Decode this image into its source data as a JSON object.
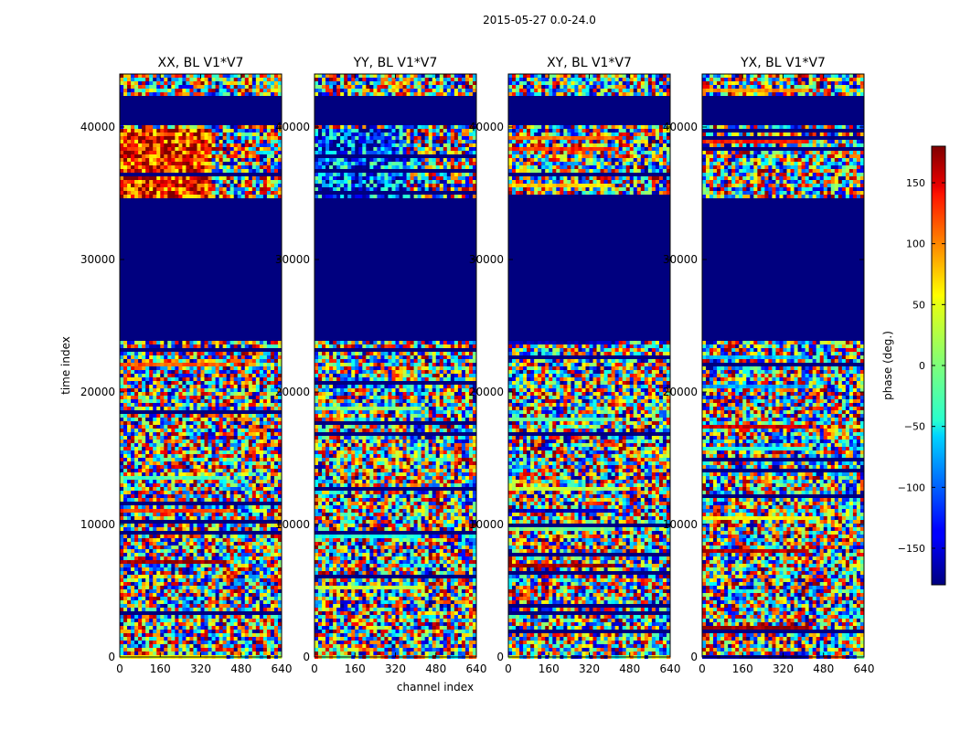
{
  "figure": {
    "suptitle": "2015-05-27 0.0-24.0",
    "ylabel": "time index",
    "xlabel": "channel index"
  },
  "chart_data": {
    "type": "heatmap",
    "description_note": "waterfall phase plots per polarization product",
    "x_range": [
      0,
      640
    ],
    "y_range": [
      0,
      44000
    ],
    "x_ticks": [
      0,
      160,
      320,
      480,
      640
    ],
    "y_ticks": [
      0,
      10000,
      20000,
      30000,
      40000
    ],
    "y_tick_labels": [
      "0",
      "10000",
      "20000",
      "30000",
      "40000"
    ],
    "panels": [
      {
        "title": "XX, BL V1*V7",
        "pol": "XX"
      },
      {
        "title": "YY, BL V1*V7",
        "pol": "YY"
      },
      {
        "title": "XY, BL V1*V7",
        "pol": "XY"
      },
      {
        "title": "YX, BL V1*V7",
        "pol": "YX"
      }
    ],
    "flagged_time_ranges": [
      [
        24000,
        34500
      ],
      [
        40200,
        42300
      ]
    ],
    "colorbar": {
      "label": "phase (deg.)",
      "range": [
        -180,
        180
      ],
      "ticks": [
        150,
        100,
        50,
        0,
        -50,
        -100,
        -150
      ],
      "tick_labels": [
        "150",
        "100",
        "50",
        "0",
        "−50",
        "−100",
        "−150"
      ],
      "colormap": "jet"
    }
  },
  "colors": {
    "flagged": "#00007f",
    "axis": "#000000"
  }
}
